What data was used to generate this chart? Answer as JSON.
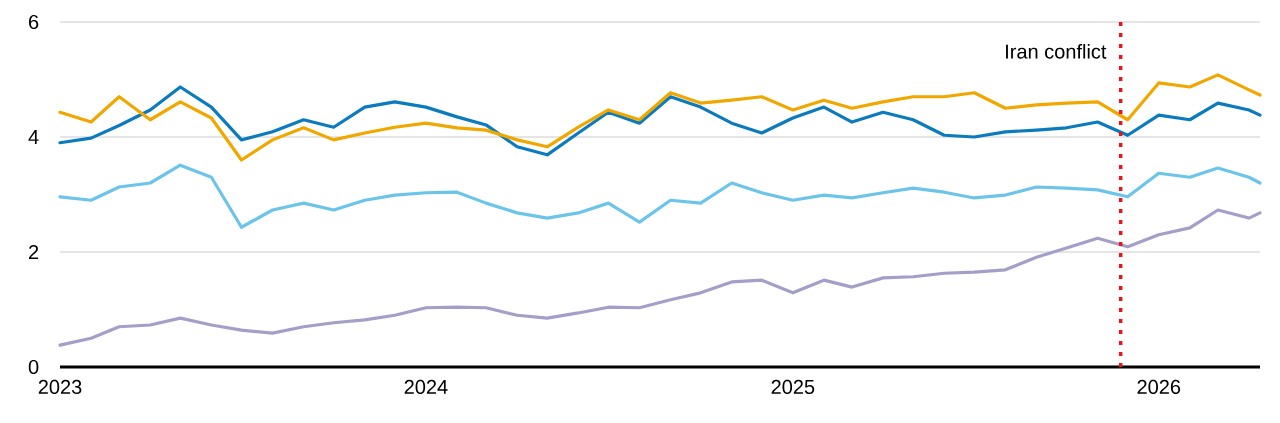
{
  "chart_data": {
    "type": "line",
    "x": [
      "2023-01-01",
      "2023-02-01",
      "2023-03-01",
      "2023-04-01",
      "2023-05-01",
      "2023-06-01",
      "2023-07-01",
      "2023-08-01",
      "2023-09-01",
      "2023-10-01",
      "2023-11-01",
      "2023-12-01",
      "2024-01-01",
      "2024-02-01",
      "2024-03-01",
      "2024-04-01",
      "2024-05-01",
      "2024-06-01",
      "2024-07-01",
      "2024-08-01",
      "2024-09-01",
      "2024-10-01",
      "2024-11-01",
      "2024-12-01",
      "2025-01-01",
      "2025-02-01",
      "2025-03-01",
      "2025-04-01",
      "2025-05-01",
      "2025-06-01",
      "2025-07-01",
      "2025-08-01",
      "2025-09-01",
      "2025-10-01",
      "2025-11-01",
      "2025-12-01",
      "2026-01-01",
      "2026-02-01",
      "2026-03-01",
      "2026-04-01",
      "2026-04-12"
    ],
    "series": [
      {
        "color": "#0b7bbd",
        "values": [
          3.9,
          3.98,
          4.2,
          4.47,
          4.87,
          4.52,
          3.95,
          4.09,
          4.3,
          4.17,
          4.52,
          4.61,
          4.52,
          4.35,
          4.21,
          3.83,
          3.69,
          4.07,
          4.43,
          4.24,
          4.7,
          4.52,
          4.24,
          4.07,
          4.33,
          4.52,
          4.26,
          4.43,
          4.3,
          4.03,
          4.0,
          4.09,
          4.12,
          4.16,
          4.26,
          4.03,
          4.38,
          4.3,
          4.59,
          4.47,
          4.38
        ]
      },
      {
        "color": "#f0a800",
        "values": [
          4.43,
          4.26,
          4.7,
          4.3,
          4.61,
          4.33,
          3.6,
          3.95,
          4.16,
          3.95,
          4.07,
          4.17,
          4.24,
          4.16,
          4.12,
          3.95,
          3.83,
          4.17,
          4.47,
          4.3,
          4.77,
          4.59,
          4.64,
          4.7,
          4.47,
          4.64,
          4.5,
          4.61,
          4.7,
          4.7,
          4.77,
          4.5,
          4.56,
          4.59,
          4.61,
          4.3,
          4.94,
          4.87,
          5.08,
          4.82,
          4.73
        ]
      },
      {
        "color": "#6cc5e9",
        "values": [
          2.96,
          2.9,
          3.13,
          3.2,
          3.51,
          3.3,
          2.43,
          2.73,
          2.85,
          2.73,
          2.9,
          2.99,
          3.03,
          3.04,
          2.85,
          2.68,
          2.59,
          2.68,
          2.85,
          2.52,
          2.9,
          2.85,
          3.2,
          3.03,
          2.9,
          2.99,
          2.94,
          3.03,
          3.11,
          3.04,
          2.94,
          2.99,
          3.13,
          3.11,
          3.08,
          2.96,
          3.37,
          3.3,
          3.46,
          3.3,
          3.2
        ]
      },
      {
        "color": "#a49fc8",
        "values": [
          0.38,
          0.5,
          0.7,
          0.73,
          0.85,
          0.73,
          0.64,
          0.59,
          0.7,
          0.77,
          0.82,
          0.9,
          1.03,
          1.04,
          1.03,
          0.9,
          0.85,
          0.94,
          1.04,
          1.03,
          1.17,
          1.29,
          1.48,
          1.51,
          1.29,
          1.51,
          1.39,
          1.55,
          1.57,
          1.63,
          1.65,
          1.69,
          1.91,
          2.07,
          2.24,
          2.09,
          2.3,
          2.42,
          2.73,
          2.59,
          2.68
        ]
      }
    ],
    "xlim": [
      "2023-01-01",
      "2026-04-12"
    ],
    "xticks": [
      {
        "value": "2023-01-01",
        "label": "2023"
      },
      {
        "value": "2024-01-01",
        "label": "2024"
      },
      {
        "value": "2025-01-01",
        "label": "2025"
      },
      {
        "value": "2026-01-01",
        "label": "2026"
      }
    ],
    "ylim": [
      0,
      6
    ],
    "yticks": [
      0,
      2,
      4,
      6
    ],
    "grid": "y",
    "ref_lines": [
      {
        "axis": "x",
        "value": "2025-11-24",
        "label": "Iran conflict",
        "color": "#e8141c",
        "line_style": "dotted"
      }
    ]
  }
}
